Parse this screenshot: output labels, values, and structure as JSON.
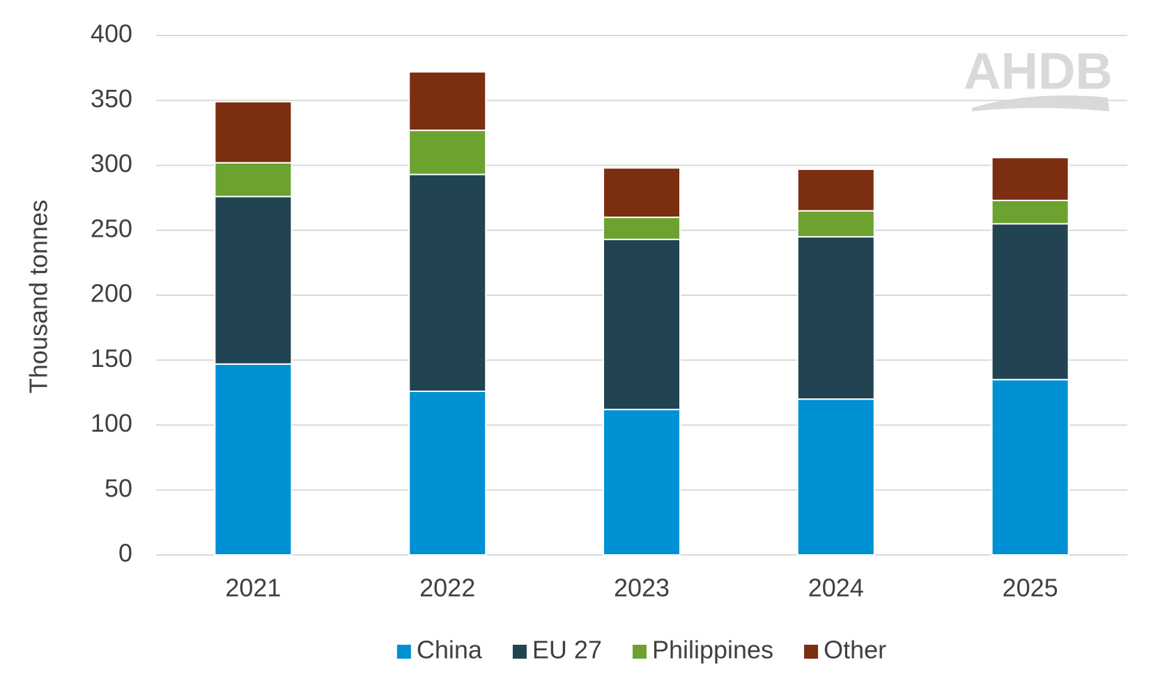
{
  "chart_data": {
    "type": "stacked-bar",
    "y_label": "Thousand tonnes",
    "watermark": "AHDB",
    "categories": [
      "2021",
      "2022",
      "2023",
      "2024",
      "2025"
    ],
    "series": [
      {
        "name": "China",
        "color": "#0090d4",
        "values": [
          147,
          126,
          112,
          120,
          135
        ]
      },
      {
        "name": "EU 27",
        "color": "#224452",
        "values": [
          129,
          167,
          131,
          125,
          120
        ]
      },
      {
        "name": "Philippines",
        "color": "#6ca22f",
        "values": [
          26,
          34,
          17,
          20,
          18
        ]
      },
      {
        "name": "Other",
        "color": "#7b2e10",
        "values": [
          47,
          45,
          38,
          32,
          33
        ]
      }
    ],
    "ylim": [
      0,
      400
    ],
    "yticks": [
      0,
      50,
      100,
      150,
      200,
      250,
      300,
      350,
      400
    ],
    "grid": true,
    "legend": "bottom"
  }
}
